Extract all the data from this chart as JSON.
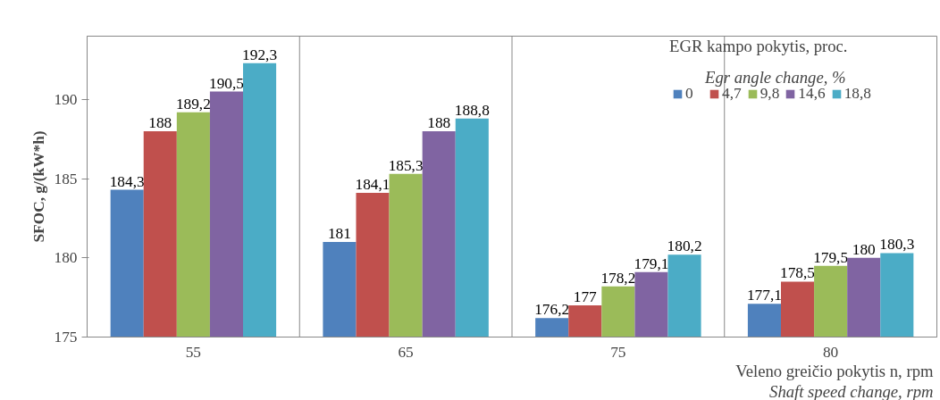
{
  "chart_data": {
    "type": "bar",
    "ylabel": "SFOC, g/(kW*h)",
    "xlabel": "Veleno greičio pokytis n, rpm\nShaft speed change, rpm",
    "legend_title": "EGR kampo pokytis, proc.\nEgr angle change, %",
    "categories": [
      "55",
      "65",
      "75",
      "80"
    ],
    "ylim": [
      175,
      194
    ],
    "yticks": [
      175,
      180,
      185,
      190
    ],
    "grid": "x",
    "legend": "top right",
    "series": [
      {
        "name": "0",
        "color": "#4f81bd",
        "values": [
          184.3,
          181,
          176.2,
          177.1
        ],
        "value_labels": [
          "184,3",
          "181",
          "176,2",
          "177,1"
        ]
      },
      {
        "name": "4,7",
        "color": "#c0504d",
        "values": [
          188,
          184.1,
          177,
          178.5
        ],
        "value_labels": [
          "188",
          "184,1",
          "177",
          "178,5"
        ]
      },
      {
        "name": "9,8",
        "color": "#9bbb59",
        "values": [
          189.2,
          185.3,
          178.2,
          179.5
        ],
        "value_labels": [
          "189,2",
          "185,3",
          "178,2",
          "179,5"
        ]
      },
      {
        "name": "14,6",
        "color": "#8064a2",
        "values": [
          190.5,
          188,
          179.1,
          180
        ],
        "value_labels": [
          "190,5",
          "188",
          "179,1",
          "180"
        ]
      },
      {
        "name": "18,8",
        "color": "#4bacc6",
        "values": [
          192.3,
          188.8,
          180.2,
          180.3
        ],
        "value_labels": [
          "192,3",
          "188,8",
          "180,2",
          "180,3"
        ]
      }
    ]
  }
}
